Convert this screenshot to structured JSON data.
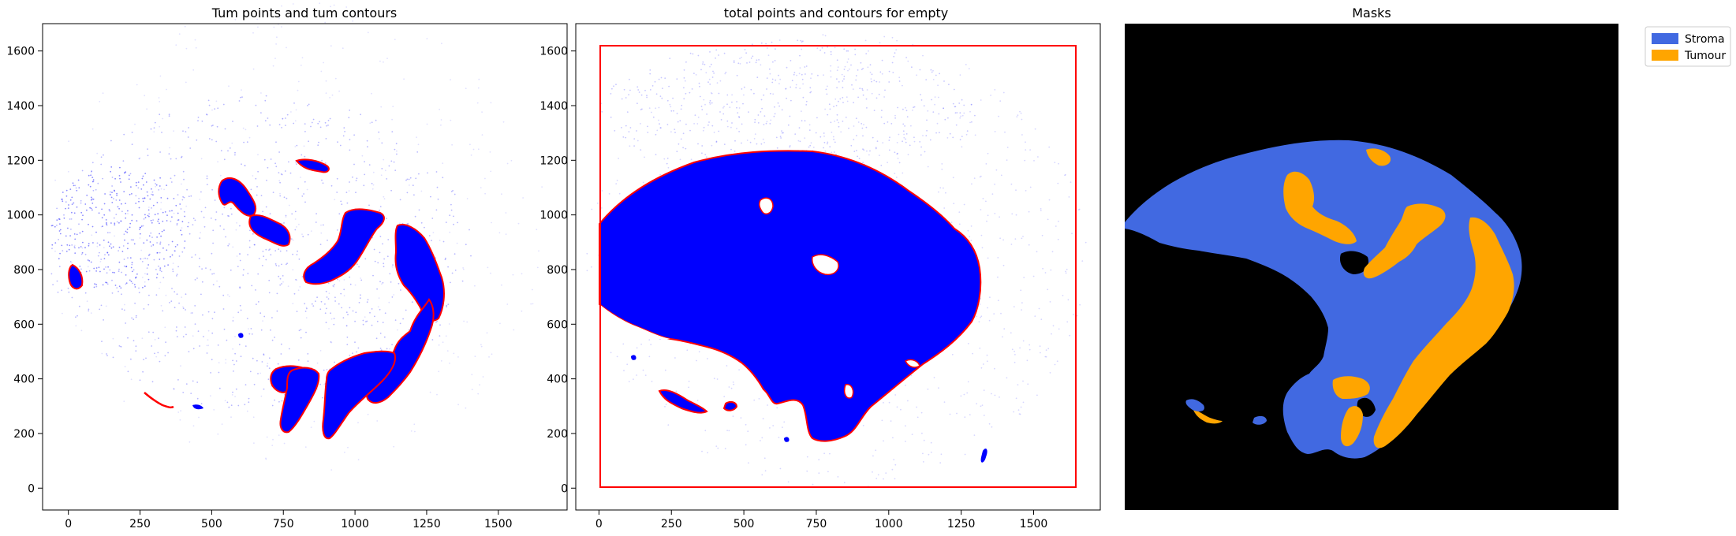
{
  "chart_data": [
    {
      "type": "scatter",
      "title": "Tum points and tum contours",
      "xlabel": "",
      "ylabel": "",
      "xlim": [
        -90,
        1740
      ],
      "ylim": [
        -80,
        1700
      ],
      "xticks": [
        "0",
        "250",
        "500",
        "750",
        "1000",
        "1250",
        "1500"
      ],
      "yticks": [
        "0",
        "200",
        "400",
        "600",
        "800",
        "1000",
        "1200",
        "1400",
        "1600"
      ],
      "point_color": "#0000ff",
      "contour_color": "#ff0000",
      "grid": false
    },
    {
      "type": "scatter",
      "title": "total points and contours for empty",
      "xlabel": "",
      "ylabel": "",
      "xlim": [
        -80,
        1730
      ],
      "ylim": [
        -80,
        1700
      ],
      "xticks": [
        "0",
        "250",
        "500",
        "750",
        "1000",
        "1250",
        "1500"
      ],
      "yticks": [
        "0",
        "200",
        "400",
        "600",
        "800",
        "1000",
        "1200",
        "1400",
        "1600"
      ],
      "point_color": "#0000ff",
      "contour_color": "#ff0000",
      "grid": false
    },
    {
      "type": "heatmap",
      "title": "Masks",
      "background_color": "#000000",
      "legend": {
        "placement": "outside-top-right",
        "entries": [
          {
            "label": "Stroma",
            "color": "#4169e1"
          },
          {
            "label": "Tumour",
            "color": "#ffa500"
          }
        ]
      }
    }
  ]
}
